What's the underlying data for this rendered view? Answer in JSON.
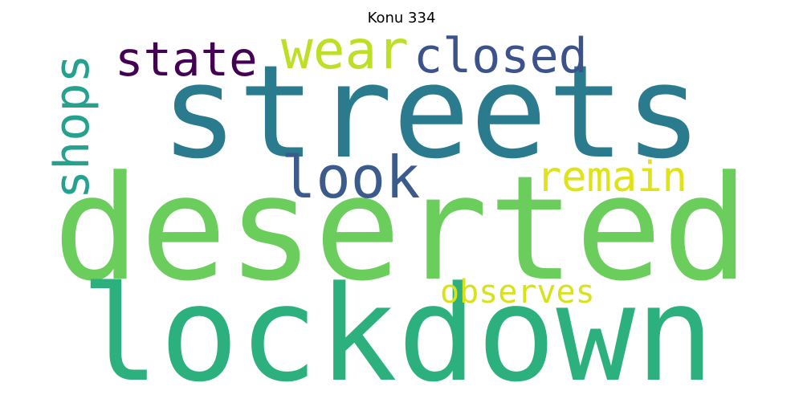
{
  "title": "Konu 334",
  "words": {
    "streets": {
      "text": "streets",
      "color": "#2a7b8e"
    },
    "deserted": {
      "text": "deserted",
      "color": "#6bcd5b"
    },
    "lockdown": {
      "text": "lockdown",
      "color": "#2cb17e"
    },
    "state": {
      "text": "state",
      "color": "#440154"
    },
    "wear": {
      "text": "wear",
      "color": "#bddf26"
    },
    "closed": {
      "text": "closed",
      "color": "#3b528b"
    },
    "look": {
      "text": "look",
      "color": "#3b5b8c"
    },
    "remain": {
      "text": "remain",
      "color": "#dfe318"
    },
    "observes": {
      "text": "observes",
      "color": "#d8e219"
    },
    "shops": {
      "text": "shops",
      "color": "#25a18e"
    }
  }
}
